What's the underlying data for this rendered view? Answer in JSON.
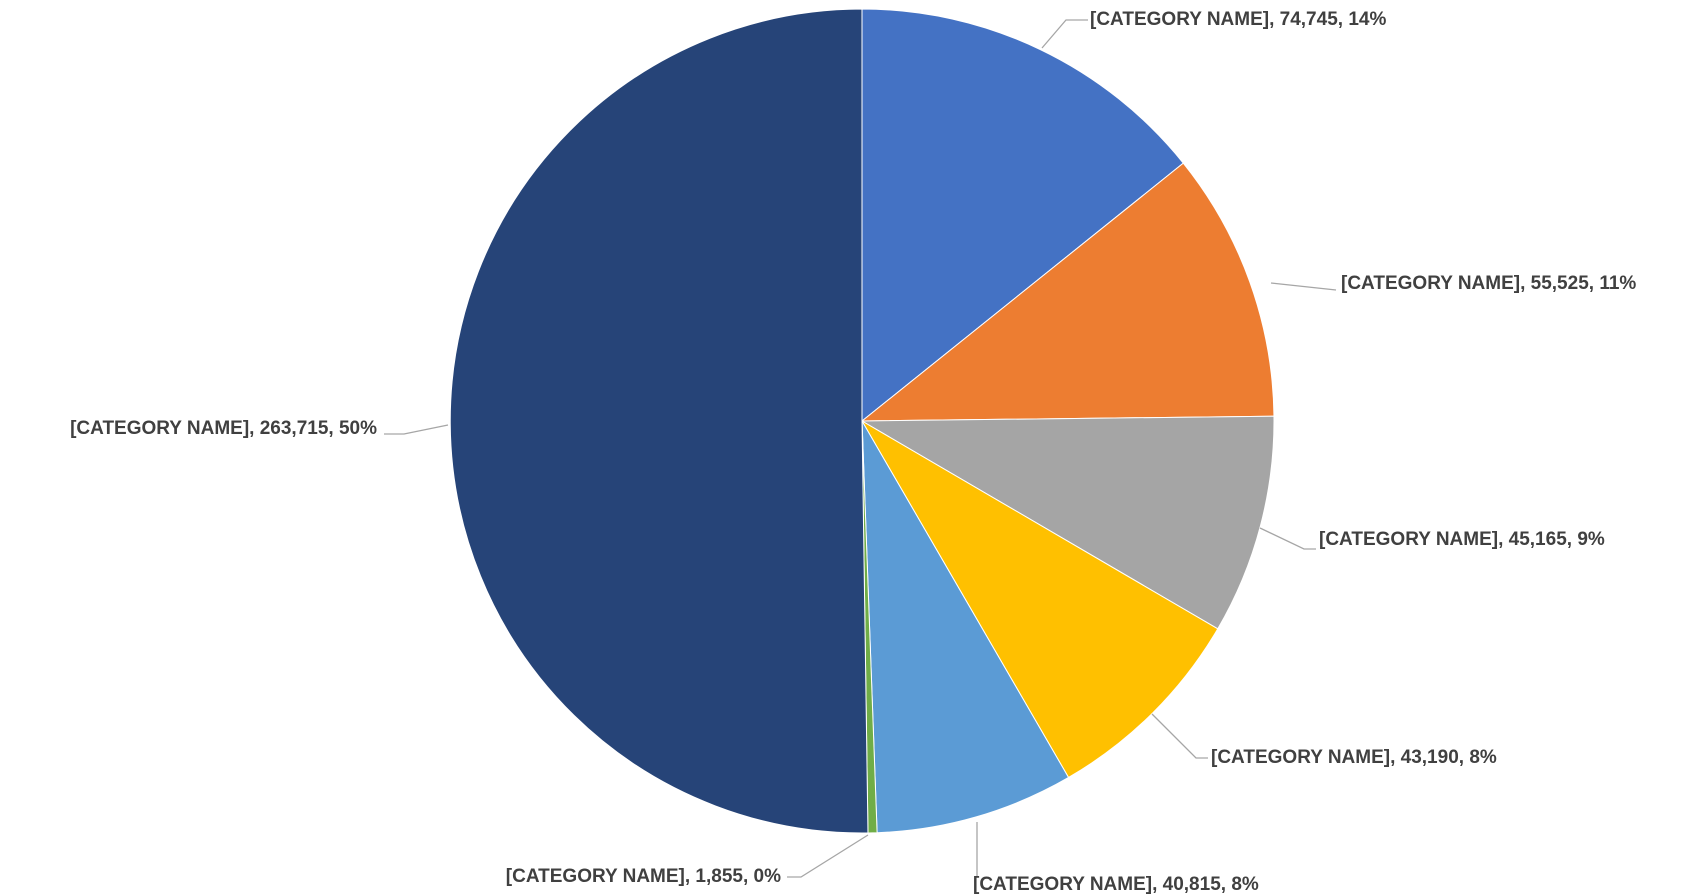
{
  "chart_data": {
    "type": "pie",
    "title": "",
    "start_angle_deg": 0,
    "direction": "clockwise",
    "slices": [
      {
        "label": "[CATEGORY NAME], 74,745, 14%",
        "category": "[CATEGORY NAME]",
        "value": 74745,
        "percent": "14%",
        "color": "#4472C4"
      },
      {
        "label": "[CATEGORY NAME], 55,525, 11%",
        "category": "[CATEGORY NAME]",
        "value": 55525,
        "percent": "11%",
        "color": "#ED7D31"
      },
      {
        "label": "[CATEGORY NAME], 45,165, 9%",
        "category": "[CATEGORY NAME]",
        "value": 45165,
        "percent": "9%",
        "color": "#A5A5A5"
      },
      {
        "label": "[CATEGORY NAME], 43,190, 8%",
        "category": "[CATEGORY NAME]",
        "value": 43190,
        "percent": "8%",
        "color": "#FFC000"
      },
      {
        "label": "[CATEGORY NAME], 40,815, 8%",
        "category": "[CATEGORY NAME]",
        "value": 40815,
        "percent": "8%",
        "color": "#5B9BD5"
      },
      {
        "label": "[CATEGORY NAME], 1,855, 0%",
        "category": "[CATEGORY NAME]",
        "value": 1855,
        "percent": "0%",
        "color": "#70AD47"
      },
      {
        "label": "[CATEGORY NAME], 263,715, 50%",
        "category": "[CATEGORY NAME]",
        "value": 263715,
        "percent": "50%",
        "color": "#264478"
      }
    ]
  }
}
